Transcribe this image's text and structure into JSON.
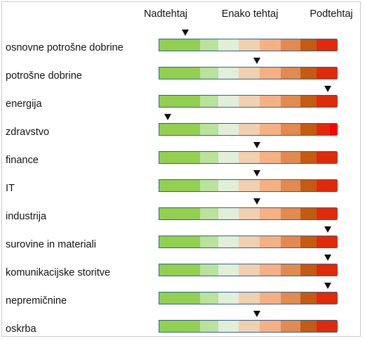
{
  "chart_data": {
    "type": "table",
    "scale_labels": [
      "Nadtehtaj",
      "Enako tehtaj",
      "Podtehtaj"
    ],
    "scale_colors": [
      "#92d050",
      "#92d050",
      "#b9e29a",
      "#e1efd9",
      "#f1d0b0",
      "#f5b184",
      "#e28a50",
      "#c55a11",
      "#e02a0a",
      "#e02a0a"
    ],
    "scale_steps": 10,
    "categories": [
      "osnovne potrošne dobrine",
      "potrošne dobrine",
      "energija",
      "zdravstvo",
      "finance",
      "IT",
      "industrija",
      "surovine in materiali",
      "komunikacijske storitve",
      "nepremičnine",
      "oskrba"
    ],
    "values": [
      1.5,
      5.5,
      9.5,
      0.5,
      5.5,
      5.5,
      5.5,
      9.5,
      9.5,
      9.5,
      5.5
    ]
  }
}
